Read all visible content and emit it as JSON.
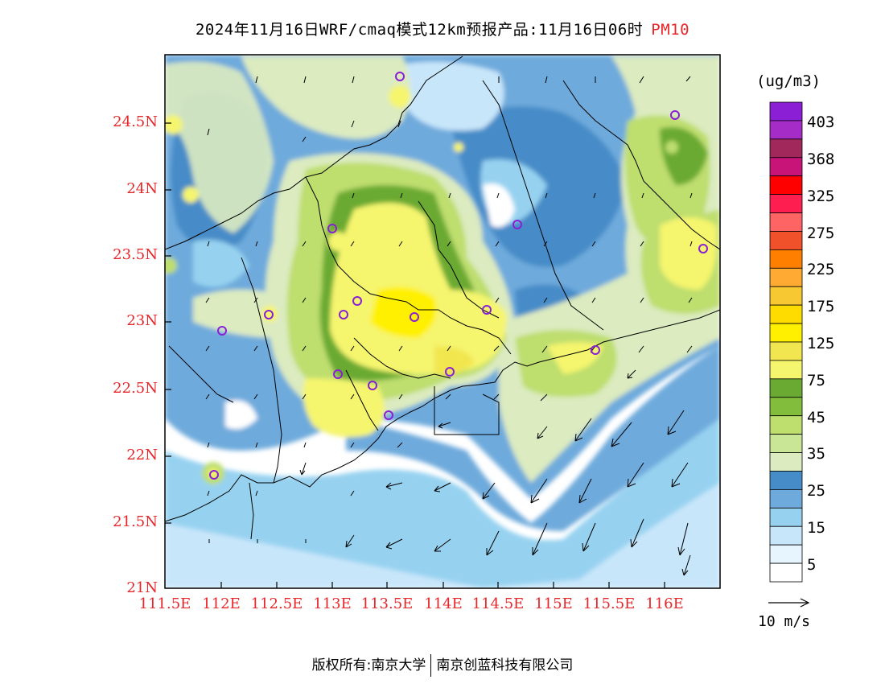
{
  "title": {
    "text": "2024年11月16日WRF/cmaq模式12km预报产品:11月16日06时",
    "variable": "PM10"
  },
  "latitude_labels": [
    "24.5N",
    "24N",
    "23.5N",
    "23N",
    "22.5N",
    "22N",
    "21.5N",
    "21N"
  ],
  "longitude_labels": [
    "111.5E",
    "112E",
    "112.5E",
    "113E",
    "113.5E",
    "114E",
    "114.5E",
    "115E",
    "115.5E",
    "116E"
  ],
  "legend": {
    "units": "(ug/m3)",
    "levels": [
      "403",
      "368",
      "325",
      "275",
      "225",
      "175",
      "125",
      "75",
      "45",
      "35",
      "25",
      "15",
      "5"
    ],
    "colors": [
      "#8a1fd6",
      "#a62cc8",
      "#a0285a",
      "#c81478",
      "#ff0000",
      "#ff1e50",
      "#ff6464",
      "#f0502a",
      "#ff7f00",
      "#ffaa32",
      "#f8c832",
      "#ffdc00",
      "#fff000",
      "#f2e650",
      "#f5f56e",
      "#6aaa32",
      "#82be3c",
      "#bede6e",
      "#c8e696",
      "#dcebc0",
      "#468cc8",
      "#6eaadc",
      "#96d2f0",
      "#c8e6fa",
      "#e6f5ff",
      "#ffffff"
    ],
    "wind_reference": "10 m/s"
  },
  "footer": {
    "copyright_prefix": "版权所有:",
    "org1": "南京大学",
    "org2": "南京创蓝科技有限公司"
  }
}
